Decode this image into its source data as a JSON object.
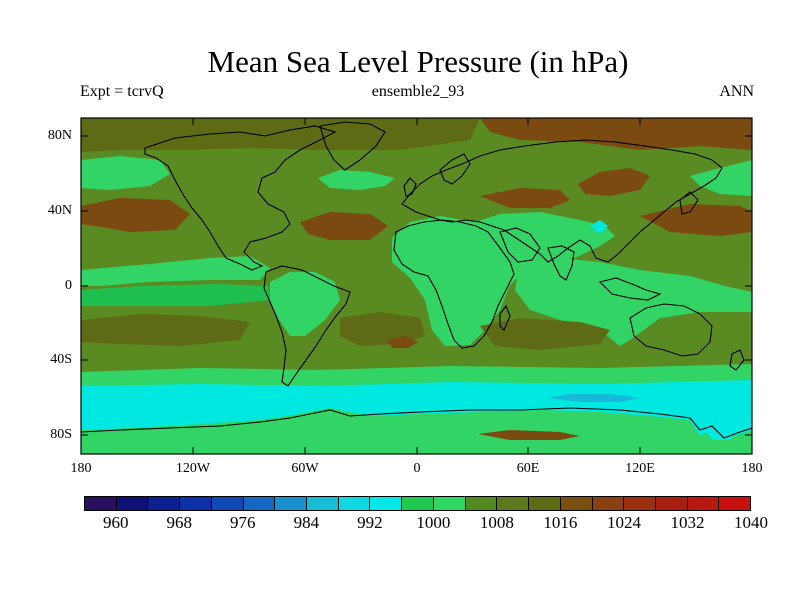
{
  "title": "Mean Sea Level Pressure (in hPa)",
  "subtitle_left": "Expt = tcrvQ",
  "subtitle_center": "ensemble2_93",
  "subtitle_right": "ANN",
  "lat_ticks": [
    "80N",
    "40N",
    "0",
    "40S",
    "80S"
  ],
  "lon_ticks": [
    "180",
    "120W",
    "60W",
    "0",
    "60E",
    "120E",
    "180"
  ],
  "colorbar": {
    "labels": [
      "960",
      "968",
      "976",
      "984",
      "992",
      "1000",
      "1008",
      "1016",
      "1024",
      "1032",
      "1040"
    ],
    "colors": [
      "#2a0f5f",
      "#101078",
      "#0c2090",
      "#0c30a8",
      "#1048b4",
      "#1468c0",
      "#1890cc",
      "#16bcd8",
      "#10d8e0",
      "#00e8e8",
      "#20c850",
      "#30d860",
      "#508a20",
      "#5c7a1c",
      "#5f6a14",
      "#7a5010",
      "#8a4010",
      "#9a3010",
      "#aa2010",
      "#b81810",
      "#c80e0e"
    ]
  },
  "map_colors": {
    "green_light": "#33d466",
    "green_mid": "#20c050",
    "olive": "#5a8a22",
    "olive_dark": "#5f6a14",
    "brown": "#7a4a10",
    "cyan": "#00e8e0",
    "blue_light": "#18b8d8"
  }
}
